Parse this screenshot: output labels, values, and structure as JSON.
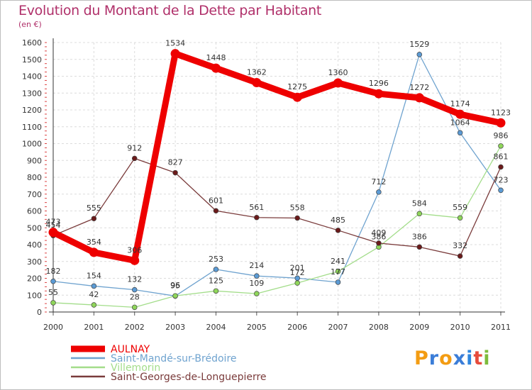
{
  "chart_data": {
    "type": "line",
    "title": "Evolution du Montant de la Dette par Habitant",
    "subtitle": "(en €)",
    "x": [
      "2000",
      "2001",
      "2002",
      "2003",
      "2004",
      "2005",
      "2006",
      "2007",
      "2008",
      "2009",
      "2010",
      "2011"
    ],
    "ylim": [
      0,
      1600
    ],
    "yticks": [
      0,
      100,
      200,
      300,
      400,
      500,
      600,
      700,
      800,
      900,
      1000,
      1100,
      1200,
      1300,
      1400,
      1500,
      1600
    ],
    "grid": true,
    "legend_position": "bottom-left",
    "series": [
      {
        "name": "AULNAY",
        "color": "#ee0000",
        "marker_color": "#ee0000",
        "values": [
          473,
          354,
          306,
          1534,
          1448,
          1362,
          1275,
          1360,
          1296,
          1272,
          1174,
          1123
        ]
      },
      {
        "name": "Saint-Mandé-sur-Brédoire",
        "color": "#6fa3cf",
        "marker_color": "#5b9bd5",
        "values": [
          182,
          154,
          132,
          95,
          253,
          214,
          201,
          177,
          712,
          1529,
          1064,
          723
        ]
      },
      {
        "name": "Villemorin",
        "color": "#a3dd8a",
        "marker_color": "#8fd65a",
        "values": [
          55,
          42,
          28,
          96,
          125,
          109,
          172,
          241,
          386,
          584,
          559,
          986
        ]
      },
      {
        "name": "Saint-Georges-de-Longuepierre",
        "color": "#7a3b3b",
        "marker_color": "#6b1a1a",
        "values": [
          454,
          555,
          912,
          827,
          601,
          561,
          558,
          485,
          409,
          386,
          332,
          861
        ]
      }
    ]
  },
  "logo": {
    "text": "Proxiti",
    "letters": [
      "P",
      "r",
      "o",
      "x",
      "i",
      "t",
      "i"
    ],
    "colors": [
      "#f39c12",
      "#3b7dd8",
      "#f39c12",
      "#3b7dd8",
      "#2e86de",
      "#e74c3c",
      "#7dbb3c"
    ]
  }
}
